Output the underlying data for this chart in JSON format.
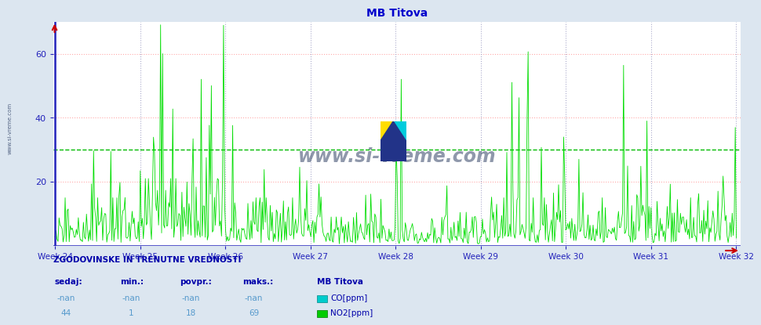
{
  "title": "MB Titova",
  "title_color": "#0000cc",
  "title_fontsize": 10,
  "fig_bg_color": "#dce6f0",
  "plot_bg_color": "#ffffff",
  "axis_color": "#2222bb",
  "ylim": [
    0,
    70
  ],
  "yticks": [
    20,
    40,
    60
  ],
  "week_labels": [
    "Week 24",
    "Week 25",
    "Week 26",
    "Week 27",
    "Week 28",
    "Week 29",
    "Week 30",
    "Week 31",
    "Week 32"
  ],
  "avg_line_y": 30,
  "avg_line_color": "#00bb00",
  "no2_color": "#00dd00",
  "co_color": "#00cccc",
  "no2_color_legend": "#00cc00",
  "grid_h_color": "#ffaaaa",
  "grid_v_color": "#aaaacc",
  "watermark": "www.si-vreme.com",
  "watermark_color": "#334466",
  "legend_title": "ZGODOVINSKE IN TRENUTNE VREDNOSTI",
  "legend_headers": [
    "sedaj:",
    "min.:",
    "povpr.:",
    "maks.:",
    "MB Titova"
  ],
  "legend_row1": [
    "-nan",
    "-nan",
    "-nan",
    "-nan",
    "CO[ppm]"
  ],
  "legend_row2": [
    "44",
    "1",
    "18",
    "69",
    "NO2[ppm]"
  ],
  "legend_color": "#0000aa",
  "legend_val_color": "#5599cc",
  "n_points": 672,
  "random_seed": 17
}
